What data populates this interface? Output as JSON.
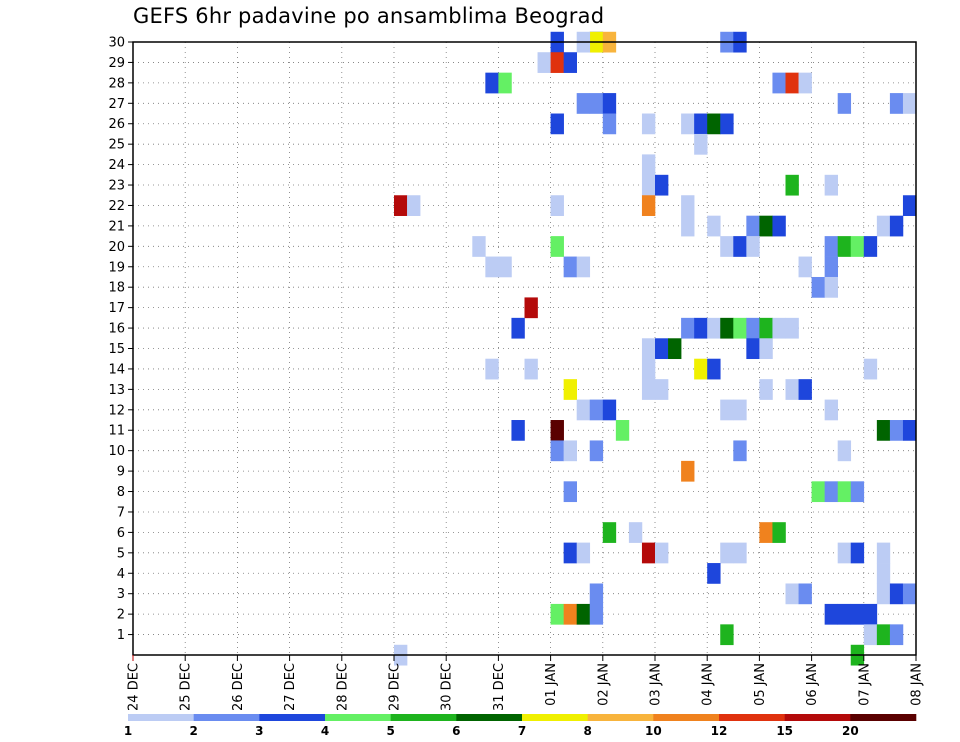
{
  "chart_data": {
    "type": "heatmap",
    "title": "GEFS 6hr padavine po ansamblima Beograd",
    "y_tick_labels": [
      "1",
      "2",
      "3",
      "4",
      "5",
      "6",
      "7",
      "8",
      "9",
      "10",
      "11",
      "12",
      "13",
      "14",
      "15",
      "16",
      "17",
      "18",
      "19",
      "20",
      "21",
      "22",
      "23",
      "24",
      "25",
      "26",
      "27",
      "28",
      "29",
      "30"
    ],
    "x_tick_labels": [
      "24 DEC",
      "25 DEC",
      "26 DEC",
      "27 DEC",
      "28 DEC",
      "29 DEC",
      "30 DEC",
      "31 DEC",
      "01 JAN",
      "02 JAN",
      "03 JAN",
      "04 JAN",
      "05 JAN",
      "06 JAN",
      "07 JAN",
      "08 JAN"
    ],
    "x_range_days": [
      0,
      15
    ],
    "y_range_members": [
      0,
      30
    ],
    "grid": "dotted",
    "colorbar": {
      "placement": "bottom",
      "tick_labels": [
        "1",
        "2",
        "3",
        "4",
        "5",
        "6",
        "7",
        "8",
        "10",
        "12",
        "15",
        "20"
      ],
      "colors": [
        "#bcccf4",
        "#6a8cf0",
        "#1e46dc",
        "#64f064",
        "#1eb41e",
        "#006400",
        "#f0f000",
        "#f8b43c",
        "#f0821e",
        "#e0320e",
        "#b40a0a",
        "#5a0000"
      ]
    },
    "cells": [
      [
        30,
        8.0,
        2
      ],
      [
        30,
        8.75,
        2
      ],
      [
        30,
        8.75,
        6
      ],
      [
        30,
        9.0,
        7
      ],
      [
        30,
        11.25,
        1
      ],
      [
        30,
        11.5,
        2
      ],
      [
        30,
        8.5,
        0
      ],
      [
        29,
        7.75,
        0
      ],
      [
        29,
        8.0,
        9
      ],
      [
        29,
        8.25,
        2
      ],
      [
        28,
        6.75,
        2
      ],
      [
        28,
        7.0,
        3
      ],
      [
        28,
        12.25,
        1
      ],
      [
        28,
        12.5,
        9
      ],
      [
        28,
        12.75,
        0
      ],
      [
        27,
        8.5,
        1
      ],
      [
        27,
        8.75,
        1
      ],
      [
        27,
        9.0,
        2
      ],
      [
        27,
        13.5,
        1
      ],
      [
        27,
        14.5,
        1
      ],
      [
        27,
        14.75,
        0
      ],
      [
        26,
        8.0,
        2
      ],
      [
        26,
        9.0,
        1
      ],
      [
        26,
        9.75,
        0
      ],
      [
        26,
        10.5,
        0
      ],
      [
        26,
        10.75,
        2
      ],
      [
        26,
        11.0,
        5
      ],
      [
        26,
        11.25,
        2
      ],
      [
        25,
        10.75,
        0
      ],
      [
        24,
        9.75,
        0
      ],
      [
        23,
        9.75,
        0
      ],
      [
        23,
        10.0,
        2
      ],
      [
        23,
        12.5,
        4
      ],
      [
        23,
        13.25,
        0
      ],
      [
        22,
        5.0,
        10
      ],
      [
        22,
        5.25,
        0
      ],
      [
        22,
        8.0,
        0
      ],
      [
        22,
        9.75,
        8
      ],
      [
        22,
        10.5,
        0
      ],
      [
        22,
        14.75,
        2
      ],
      [
        21,
        10.5,
        0
      ],
      [
        21,
        11.0,
        0
      ],
      [
        21,
        11.75,
        1
      ],
      [
        21,
        12.0,
        5
      ],
      [
        21,
        12.25,
        2
      ],
      [
        21,
        14.25,
        0
      ],
      [
        21,
        14.5,
        2
      ],
      [
        20,
        6.5,
        0
      ],
      [
        20,
        8.0,
        3
      ],
      [
        20,
        11.25,
        0
      ],
      [
        20,
        11.5,
        2
      ],
      [
        20,
        11.75,
        0
      ],
      [
        20,
        13.25,
        1
      ],
      [
        20,
        13.5,
        4
      ],
      [
        20,
        13.75,
        3
      ],
      [
        20,
        14.0,
        2
      ],
      [
        19,
        6.75,
        0
      ],
      [
        19,
        7.0,
        0
      ],
      [
        19,
        8.25,
        1
      ],
      [
        19,
        8.5,
        0
      ],
      [
        19,
        12.75,
        0
      ],
      [
        19,
        13.25,
        1
      ],
      [
        18,
        13.0,
        1
      ],
      [
        18,
        13.25,
        0
      ],
      [
        17,
        7.5,
        10
      ],
      [
        16,
        7.25,
        2
      ],
      [
        16,
        10.5,
        1
      ],
      [
        16,
        10.75,
        2
      ],
      [
        16,
        11.0,
        0
      ],
      [
        16,
        11.25,
        5
      ],
      [
        16,
        11.5,
        3
      ],
      [
        16,
        11.75,
        1
      ],
      [
        16,
        12.0,
        4
      ],
      [
        16,
        12.25,
        0
      ],
      [
        16,
        12.5,
        0
      ],
      [
        15,
        9.75,
        0
      ],
      [
        15,
        10.0,
        2
      ],
      [
        15,
        10.25,
        5
      ],
      [
        15,
        11.75,
        2
      ],
      [
        15,
        12.0,
        0
      ],
      [
        14,
        6.75,
        0
      ],
      [
        14,
        7.5,
        0
      ],
      [
        14,
        9.75,
        0
      ],
      [
        14,
        10.75,
        6
      ],
      [
        14,
        11.0,
        2
      ],
      [
        14,
        14.0,
        0
      ],
      [
        13,
        8.25,
        6
      ],
      [
        13,
        9.75,
        0
      ],
      [
        13,
        10.0,
        0
      ],
      [
        13,
        12.0,
        0
      ],
      [
        13,
        12.5,
        0
      ],
      [
        13,
        12.75,
        2
      ],
      [
        12,
        8.5,
        0
      ],
      [
        12,
        8.75,
        1
      ],
      [
        12,
        9.0,
        2
      ],
      [
        12,
        11.25,
        0
      ],
      [
        12,
        11.5,
        0
      ],
      [
        12,
        13.25,
        0
      ],
      [
        11,
        7.25,
        2
      ],
      [
        11,
        8.0,
        11
      ],
      [
        11,
        9.25,
        3
      ],
      [
        11,
        14.25,
        5
      ],
      [
        11,
        14.5,
        1
      ],
      [
        11,
        14.75,
        2
      ],
      [
        10,
        8.0,
        1
      ],
      [
        10,
        8.25,
        0
      ],
      [
        10,
        8.75,
        1
      ],
      [
        10,
        11.5,
        1
      ],
      [
        10,
        13.5,
        0
      ],
      [
        9,
        10.5,
        8
      ],
      [
        8,
        8.25,
        1
      ],
      [
        8,
        13.0,
        3
      ],
      [
        8,
        13.25,
        1
      ],
      [
        8,
        13.5,
        3
      ],
      [
        8,
        13.75,
        1
      ],
      [
        6,
        9.0,
        4
      ],
      [
        6,
        9.5,
        0
      ],
      [
        6,
        12.0,
        8
      ],
      [
        6,
        12.25,
        4
      ],
      [
        5,
        8.25,
        2
      ],
      [
        5,
        8.5,
        0
      ],
      [
        5,
        9.75,
        10
      ],
      [
        5,
        10.0,
        0
      ],
      [
        5,
        11.25,
        0
      ],
      [
        5,
        11.5,
        0
      ],
      [
        5,
        13.5,
        0
      ],
      [
        5,
        13.75,
        2
      ],
      [
        5,
        14.25,
        0
      ],
      [
        4,
        11.0,
        2
      ],
      [
        4,
        14.25,
        0
      ],
      [
        3,
        8.75,
        1
      ],
      [
        3,
        12.5,
        0
      ],
      [
        3,
        12.75,
        1
      ],
      [
        3,
        14.25,
        0
      ],
      [
        3,
        14.5,
        2
      ],
      [
        3,
        14.75,
        1
      ],
      [
        2,
        8.0,
        3
      ],
      [
        2,
        8.25,
        8
      ],
      [
        2,
        8.5,
        5
      ],
      [
        2,
        8.75,
        1
      ],
      [
        2,
        13.25,
        2
      ],
      [
        2,
        13.5,
        2
      ],
      [
        2,
        13.75,
        2
      ],
      [
        2,
        14.0,
        2
      ],
      [
        1,
        11.25,
        4
      ],
      [
        1,
        14.0,
        0
      ],
      [
        1,
        14.25,
        4
      ],
      [
        1,
        14.5,
        1
      ],
      [
        0,
        5.0,
        0
      ],
      [
        0,
        13.75,
        4
      ]
    ]
  }
}
